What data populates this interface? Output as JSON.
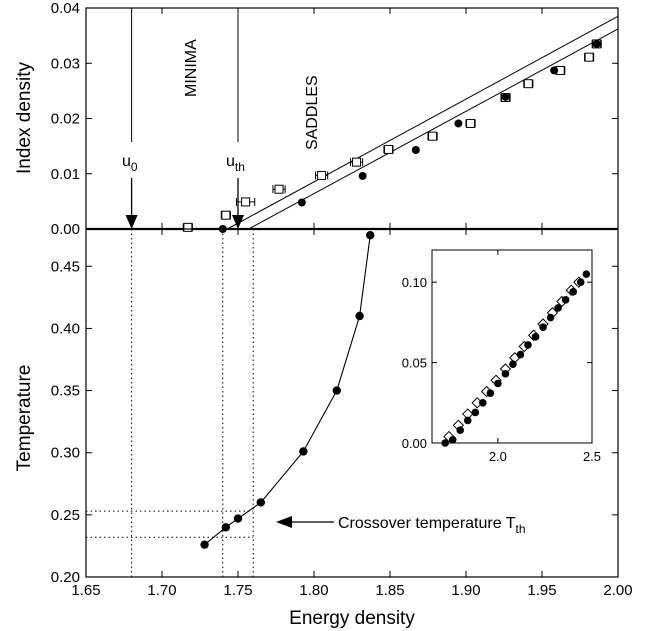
{
  "chart_data": [
    {
      "type": "scatter",
      "panel": "top",
      "xlabel": "Energy density",
      "ylabel": "Index density",
      "xlim": [
        1.65,
        2.0
      ],
      "ylim": [
        0.0,
        0.04
      ],
      "xticks": [
        "1.65",
        "1.70",
        "1.75",
        "1.80",
        "1.85",
        "1.90",
        "1.95",
        "2.00"
      ],
      "yticks": [
        "0.00",
        "0.01",
        "0.02",
        "0.03",
        "0.04"
      ],
      "region_labels": [
        "MINIMA",
        "SADDLES"
      ],
      "markers": [
        {
          "label": "u",
          "sub": "0",
          "x": 1.68
        },
        {
          "label": "u",
          "sub": "th",
          "x": 1.75
        }
      ],
      "series": [
        {
          "marker": "open-square-with-xerror",
          "x": [
            1.717,
            1.742,
            1.755,
            1.777,
            1.805,
            1.828,
            1.849,
            1.878,
            1.903,
            1.926,
            1.941,
            1.962,
            1.981,
            1.986
          ],
          "y": [
            0.0003,
            0.0025,
            0.0049,
            0.0072,
            0.0097,
            0.0121,
            0.0144,
            0.0168,
            0.0191,
            0.0238,
            0.0263,
            0.0287,
            0.0311,
            0.0335
          ],
          "xerr": [
            0.003,
            0.003,
            0.006,
            0.004,
            0.004,
            0.004,
            0.003,
            0.003,
            0.003,
            0.003,
            0.003,
            0.003,
            0.003,
            0.003
          ]
        },
        {
          "marker": "filled-circle",
          "x": [
            1.74,
            1.792,
            1.832,
            1.867,
            1.895,
            1.926,
            1.958,
            1.986
          ],
          "y": [
            0.0,
            0.0048,
            0.0096,
            0.0143,
            0.0191,
            0.0239,
            0.0287,
            0.0335
          ]
        }
      ],
      "fit_lines": [
        {
          "x": [
            1.743,
            2.0
          ],
          "y": [
            0.0,
            0.0385
          ]
        },
        {
          "x": [
            1.757,
            2.0
          ],
          "y": [
            0.0,
            0.0362
          ]
        }
      ]
    },
    {
      "type": "line",
      "panel": "bottom",
      "xlabel": "Energy density",
      "ylabel": "Temperature",
      "xlim": [
        1.65,
        2.0
      ],
      "ylim": [
        0.2,
        0.48
      ],
      "xticks": [
        "1.65",
        "1.70",
        "1.75",
        "1.80",
        "1.85",
        "1.90",
        "1.95",
        "2.00"
      ],
      "yticks": [
        "0.20",
        "0.25",
        "0.30",
        "0.35",
        "0.40",
        "0.45"
      ],
      "series": [
        {
          "marker": "filled-circle",
          "x": [
            1.728,
            1.742,
            1.75,
            1.765,
            1.793,
            1.815,
            1.83,
            1.837
          ],
          "y": [
            0.226,
            0.24,
            0.247,
            0.26,
            0.301,
            0.35,
            0.41,
            0.475
          ]
        }
      ],
      "annotation": {
        "text": "Crossover temperature T",
        "sub": "th"
      },
      "reference_lines": {
        "vertical": [
          1.68,
          1.74,
          1.76
        ],
        "horizontal": [
          0.232,
          0.253
        ]
      }
    },
    {
      "type": "scatter",
      "panel": "inset",
      "xlim": [
        1.65,
        2.5
      ],
      "ylim": [
        0.0,
        0.12
      ],
      "xticks": [
        "2.0",
        "2.5"
      ],
      "yticks": [
        "0.00",
        "0.05",
        "0.10"
      ],
      "series": [
        {
          "marker": "open-diamond",
          "x": [
            1.74,
            1.79,
            1.84,
            1.89,
            1.94,
            1.99,
            2.04,
            2.09,
            2.14,
            2.19,
            2.24,
            2.29,
            2.34,
            2.39,
            2.43
          ],
          "y": [
            0.004,
            0.011,
            0.018,
            0.025,
            0.032,
            0.039,
            0.046,
            0.053,
            0.06,
            0.067,
            0.074,
            0.081,
            0.088,
            0.095,
            0.1
          ]
        },
        {
          "marker": "filled-circle",
          "x": [
            1.72,
            1.76,
            1.8,
            1.84,
            1.88,
            1.92,
            1.96,
            2.0,
            2.04,
            2.08,
            2.12,
            2.16,
            2.2,
            2.24,
            2.28,
            2.32,
            2.36,
            2.4,
            2.44,
            2.47
          ],
          "y": [
            0.0,
            0.002,
            0.008,
            0.014,
            0.019,
            0.025,
            0.031,
            0.037,
            0.043,
            0.049,
            0.055,
            0.061,
            0.066,
            0.072,
            0.078,
            0.084,
            0.089,
            0.094,
            0.1,
            0.105
          ]
        }
      ]
    }
  ]
}
